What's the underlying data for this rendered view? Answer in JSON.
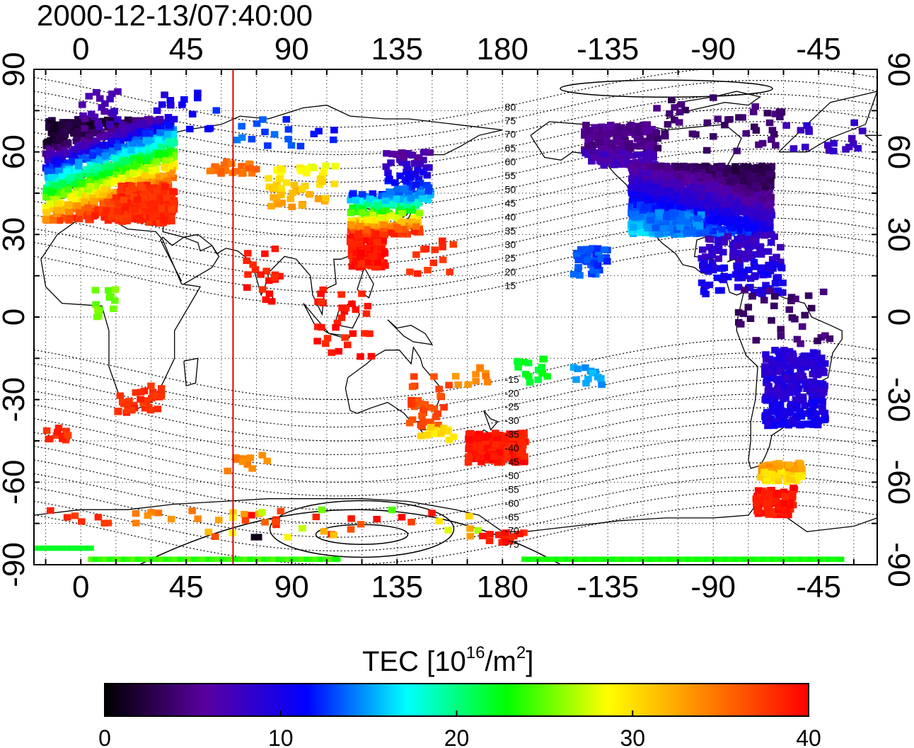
{
  "title": "2000-12-13/07:40:00",
  "map": {
    "lon_range": [
      -20,
      340
    ],
    "lat_range": [
      -90,
      90
    ],
    "lon_ticks": [
      0,
      45,
      90,
      135,
      180,
      225,
      270,
      315
    ],
    "lon_tick_labels": [
      "0",
      "45",
      "90",
      "135",
      "180",
      "-135",
      "-90",
      "-45"
    ],
    "lat_ticks": [
      90,
      60,
      30,
      0,
      -30,
      -60,
      -90
    ],
    "lat_tick_labels": [
      "90",
      "60",
      "30",
      "0",
      "-30",
      "-60",
      "-90"
    ],
    "grid": "dotted, 15 degree spacing",
    "marker_line_longitude": 65,
    "marker_line_color": "#e00000",
    "magnetic_latitude_labels": [
      "80",
      "75",
      "70",
      "65",
      "60",
      "55",
      "50",
      "45",
      "40",
      "35",
      "30",
      "25",
      "20",
      "15",
      "-15",
      "-20",
      "-25",
      "-30",
      "-35",
      "-40",
      "-45",
      "-50",
      "-55",
      "-60",
      "-65",
      "-70",
      "-75"
    ]
  },
  "colorbar": {
    "label_main": "TEC  [10",
    "label_sup1": "16",
    "label_mid": "/m",
    "label_sup2": "2",
    "label_end": "]",
    "min": 0,
    "max": 40,
    "ticks": [
      "0",
      "10",
      "20",
      "30",
      "40"
    ],
    "colors": [
      "#000000",
      "#5a00a0",
      "#0000ff",
      "#00ffff",
      "#00ff00",
      "#ffff00",
      "#ff8000",
      "#ff0000"
    ]
  }
}
